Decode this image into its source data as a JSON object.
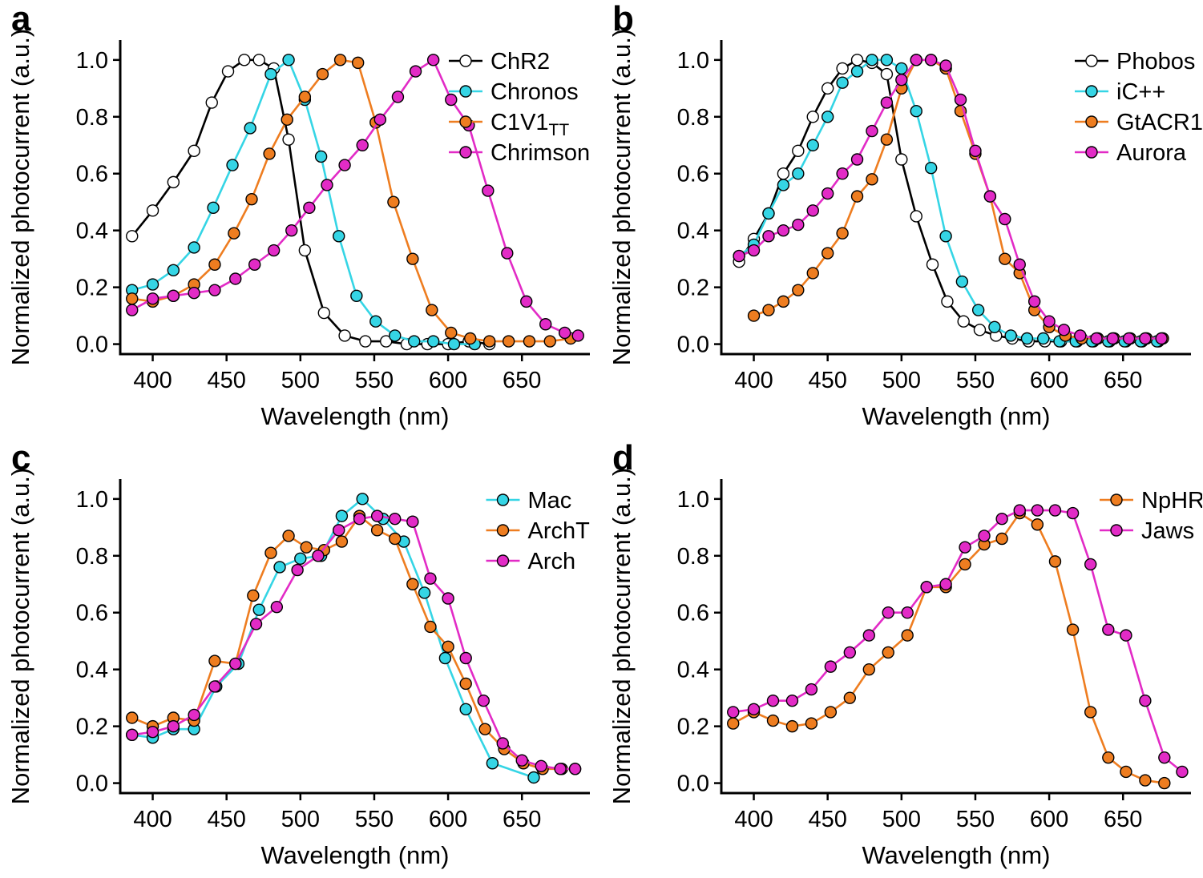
{
  "figure": {
    "background": "#ffffff",
    "axis_color": "#000000"
  },
  "chart_data": [
    {
      "panel": "a",
      "type": "line",
      "title": "",
      "xlabel": "Wavelength (nm)",
      "ylabel": "Normalized photocurrent (a.u.)",
      "xlim": [
        380,
        695
      ],
      "ylim": [
        0,
        1.0
      ],
      "xticks": [
        400,
        450,
        500,
        550,
        600,
        650
      ],
      "yticks": [
        "0.0",
        "0.2",
        "0.4",
        "0.6",
        "0.8",
        "1.0"
      ],
      "grid": false,
      "legend_position": "top-right",
      "series": [
        {
          "name": "ChR2",
          "color": "#000000",
          "marker_fill": "#ffffff",
          "x": [
            386,
            400,
            414,
            428,
            440,
            451,
            462,
            472,
            482,
            492,
            503,
            516,
            530,
            544,
            558,
            572,
            586,
            600,
            614,
            628
          ],
          "y": [
            0.38,
            0.47,
            0.57,
            0.68,
            0.85,
            0.96,
            1.0,
            1.0,
            0.97,
            0.72,
            0.33,
            0.11,
            0.03,
            0.01,
            0.01,
            0.0,
            0.0,
            0.0,
            0.01,
            0.0
          ]
        },
        {
          "name": "Chronos",
          "color": "#35D5E5",
          "x": [
            386,
            400,
            414,
            428,
            441,
            454,
            466,
            480,
            492,
            503,
            514,
            526,
            538,
            551,
            564,
            577,
            590,
            604,
            618
          ],
          "y": [
            0.19,
            0.21,
            0.26,
            0.34,
            0.48,
            0.63,
            0.76,
            0.95,
            1.0,
            0.86,
            0.66,
            0.38,
            0.17,
            0.08,
            0.03,
            0.01,
            0.01,
            0.0,
            0.0
          ]
        },
        {
          "name": "C1V1",
          "sub": "TT",
          "color": "#EE7D20",
          "x": [
            386,
            400,
            414,
            428,
            442,
            455,
            467,
            479,
            491,
            503,
            515,
            527,
            539,
            551,
            563,
            576,
            589,
            602,
            615,
            628,
            641,
            655,
            669,
            683
          ],
          "y": [
            0.16,
            0.15,
            0.17,
            0.21,
            0.28,
            0.39,
            0.51,
            0.67,
            0.79,
            0.87,
            0.95,
            1.0,
            0.99,
            0.78,
            0.5,
            0.3,
            0.12,
            0.04,
            0.02,
            0.01,
            0.01,
            0.01,
            0.01,
            0.02
          ]
        },
        {
          "name": "Chrimson",
          "color": "#E22BC6",
          "x": [
            386,
            400,
            414,
            428,
            442,
            456,
            469,
            482,
            494,
            506,
            518,
            530,
            542,
            554,
            566,
            578,
            590,
            602,
            614,
            627,
            640,
            653,
            666,
            679,
            688
          ],
          "y": [
            0.12,
            0.16,
            0.17,
            0.18,
            0.19,
            0.23,
            0.28,
            0.33,
            0.4,
            0.48,
            0.56,
            0.63,
            0.7,
            0.79,
            0.87,
            0.96,
            1.0,
            0.86,
            0.77,
            0.54,
            0.32,
            0.15,
            0.07,
            0.04,
            0.03
          ]
        }
      ]
    },
    {
      "panel": "b",
      "type": "line",
      "title": "",
      "xlabel": "Wavelength (nm)",
      "ylabel": "Normalized photocurrent (a.u.)",
      "xlim": [
        380,
        695
      ],
      "ylim": [
        0,
        1.0
      ],
      "xticks": [
        400,
        450,
        500,
        550,
        600,
        650
      ],
      "yticks": [
        "0.0",
        "0.2",
        "0.4",
        "0.6",
        "0.8",
        "1.0"
      ],
      "grid": false,
      "legend_position": "top-right",
      "series": [
        {
          "name": "Phobos",
          "color": "#000000",
          "marker_fill": "#ffffff",
          "x": [
            390,
            400,
            410,
            420,
            430,
            440,
            450,
            460,
            470,
            480,
            490,
            500,
            510,
            521,
            531,
            542,
            553,
            564,
            575,
            586,
            597,
            608,
            619,
            630,
            641,
            652,
            663,
            674
          ],
          "y": [
            0.29,
            0.37,
            0.46,
            0.6,
            0.68,
            0.8,
            0.9,
            0.97,
            1.0,
            0.99,
            0.95,
            0.65,
            0.45,
            0.28,
            0.15,
            0.08,
            0.05,
            0.03,
            0.02,
            0.01,
            0.01,
            0.01,
            0.01,
            0.01,
            0.01,
            0.01,
            0.01,
            0.01
          ]
        },
        {
          "name": "iC++",
          "color": "#35D5E5",
          "x": [
            390,
            400,
            410,
            420,
            430,
            440,
            450,
            460,
            470,
            480,
            490,
            500,
            510,
            520,
            530,
            541,
            552,
            563,
            574,
            585,
            596,
            607,
            618,
            629,
            640,
            651,
            662,
            673
          ],
          "y": [
            0.31,
            0.35,
            0.46,
            0.56,
            0.6,
            0.7,
            0.8,
            0.92,
            0.96,
            1.0,
            1.0,
            0.97,
            0.82,
            0.62,
            0.38,
            0.22,
            0.12,
            0.06,
            0.03,
            0.02,
            0.02,
            0.01,
            0.01,
            0.01,
            0.01,
            0.01,
            0.01,
            0.01
          ]
        },
        {
          "name": "GtACR1",
          "color": "#EE7D20",
          "x": [
            400,
            410,
            420,
            430,
            440,
            450,
            460,
            470,
            480,
            490,
            500,
            510,
            520,
            530,
            540,
            550,
            560,
            570,
            580,
            590,
            600,
            611,
            622,
            633,
            644,
            655,
            666,
            677
          ],
          "y": [
            0.1,
            0.12,
            0.15,
            0.19,
            0.25,
            0.32,
            0.39,
            0.52,
            0.58,
            0.72,
            0.9,
            1.0,
            1.0,
            0.97,
            0.82,
            0.67,
            0.52,
            0.3,
            0.25,
            0.12,
            0.06,
            0.03,
            0.02,
            0.02,
            0.02,
            0.02,
            0.02,
            0.02
          ]
        },
        {
          "name": "Aurora",
          "color": "#E22BC6",
          "x": [
            390,
            400,
            410,
            420,
            430,
            440,
            450,
            460,
            470,
            480,
            490,
            500,
            510,
            520,
            530,
            540,
            550,
            560,
            570,
            580,
            590,
            600,
            610,
            621,
            632,
            643,
            654,
            665,
            676
          ],
          "y": [
            0.31,
            0.33,
            0.38,
            0.4,
            0.42,
            0.47,
            0.53,
            0.6,
            0.65,
            0.75,
            0.85,
            0.93,
            1.0,
            1.0,
            0.98,
            0.86,
            0.68,
            0.52,
            0.44,
            0.28,
            0.15,
            0.08,
            0.05,
            0.03,
            0.02,
            0.02,
            0.02,
            0.02,
            0.02
          ]
        }
      ]
    },
    {
      "panel": "c",
      "type": "line",
      "title": "",
      "xlabel": "Wavelength (nm)",
      "ylabel": "Normalized photocurrent (a.u.)",
      "xlim": [
        380,
        695
      ],
      "ylim": [
        0,
        1.0
      ],
      "xticks": [
        400,
        450,
        500,
        550,
        600,
        650
      ],
      "yticks": [
        "0.0",
        "0.2",
        "0.4",
        "0.6",
        "0.8",
        "1.0"
      ],
      "grid": false,
      "legend_position": "top-right",
      "series": [
        {
          "name": "Mac",
          "color": "#35D5E5",
          "x": [
            386,
            400,
            414,
            428,
            443,
            458,
            472,
            486,
            500,
            514,
            528,
            542,
            556,
            570,
            584,
            598,
            612,
            630,
            658
          ],
          "y": [
            0.17,
            0.16,
            0.19,
            0.19,
            0.34,
            0.42,
            0.61,
            0.76,
            0.79,
            0.8,
            0.94,
            1.0,
            0.93,
            0.85,
            0.67,
            0.44,
            0.26,
            0.07,
            0.02
          ]
        },
        {
          "name": "ArchT",
          "color": "#EE7D20",
          "x": [
            386,
            400,
            414,
            428,
            442,
            456,
            468,
            480,
            492,
            504,
            516,
            528,
            540,
            552,
            564,
            576,
            588,
            600,
            612,
            625,
            638,
            651,
            664,
            677,
            686
          ],
          "y": [
            0.23,
            0.2,
            0.23,
            0.22,
            0.43,
            0.42,
            0.66,
            0.81,
            0.87,
            0.83,
            0.82,
            0.85,
            0.94,
            0.89,
            0.86,
            0.7,
            0.55,
            0.48,
            0.35,
            0.19,
            0.12,
            0.07,
            0.05,
            0.05,
            0.05
          ]
        },
        {
          "name": "Arch",
          "color": "#E22BC6",
          "x": [
            386,
            400,
            414,
            428,
            442,
            456,
            470,
            484,
            498,
            512,
            526,
            540,
            552,
            564,
            576,
            588,
            600,
            612,
            624,
            637,
            650,
            663,
            676,
            686
          ],
          "y": [
            0.17,
            0.18,
            0.2,
            0.24,
            0.34,
            0.42,
            0.56,
            0.62,
            0.75,
            0.8,
            0.89,
            0.93,
            0.94,
            0.93,
            0.92,
            0.72,
            0.65,
            0.44,
            0.29,
            0.14,
            0.08,
            0.06,
            0.05,
            0.05
          ]
        }
      ]
    },
    {
      "panel": "d",
      "type": "line",
      "title": "",
      "xlabel": "Wavelength (nm)",
      "ylabel": "Normalized photocurrent (a.u.)",
      "xlim": [
        380,
        695
      ],
      "ylim": [
        0,
        1.0
      ],
      "xticks": [
        400,
        450,
        500,
        550,
        600,
        650
      ],
      "yticks": [
        "0.0",
        "0.2",
        "0.4",
        "0.6",
        "0.8",
        "1.0"
      ],
      "grid": false,
      "legend_position": "top-right",
      "series": [
        {
          "name": "NpHR",
          "color": "#EE7D20",
          "x": [
            386,
            400,
            413,
            426,
            439,
            452,
            465,
            478,
            491,
            504,
            517,
            530,
            543,
            556,
            568,
            580,
            592,
            604,
            616,
            628,
            640,
            652,
            665,
            678
          ],
          "y": [
            0.21,
            0.25,
            0.22,
            0.2,
            0.21,
            0.25,
            0.3,
            0.4,
            0.46,
            0.52,
            0.69,
            0.69,
            0.77,
            0.84,
            0.86,
            0.95,
            0.91,
            0.78,
            0.54,
            0.25,
            0.09,
            0.04,
            0.01,
            0.0
          ]
        },
        {
          "name": "Jaws",
          "color": "#E22BC6",
          "x": [
            386,
            400,
            413,
            426,
            439,
            452,
            465,
            478,
            491,
            504,
            517,
            530,
            543,
            556,
            568,
            580,
            592,
            604,
            616,
            628,
            640,
            652,
            665,
            678,
            690
          ],
          "y": [
            0.25,
            0.26,
            0.29,
            0.29,
            0.33,
            0.41,
            0.46,
            0.52,
            0.6,
            0.6,
            0.69,
            0.7,
            0.83,
            0.87,
            0.93,
            0.96,
            0.96,
            0.96,
            0.95,
            0.77,
            0.54,
            0.52,
            0.29,
            0.09,
            0.04
          ]
        }
      ]
    }
  ]
}
